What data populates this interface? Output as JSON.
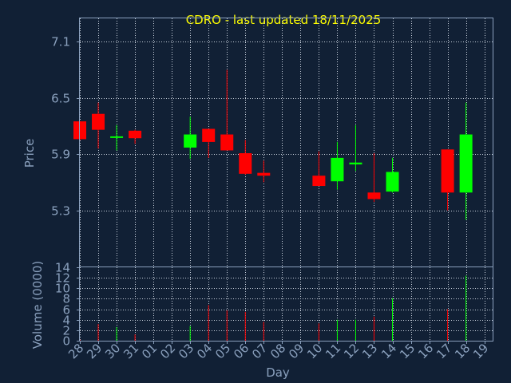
{
  "chart_data": {
    "type": "candlestick",
    "title": "CDRO - last updated 18/11/2025",
    "xlabel": "Day",
    "x_ticks": [
      "28",
      "29",
      "30",
      "31",
      "01",
      "02",
      "03",
      "04",
      "05",
      "06",
      "07",
      "08",
      "09",
      "10",
      "11",
      "12",
      "13",
      "14",
      "15",
      "16",
      "17",
      "18",
      "19"
    ],
    "price": {
      "ylabel": "Price",
      "ylim": [
        4.7,
        7.35
      ],
      "yticks": [
        5.3,
        5.9,
        6.5,
        7.1
      ],
      "ytick_labels": [
        "5.3",
        "5.9",
        "6.5",
        "7.1"
      ]
    },
    "volume": {
      "ylabel": "Volume (0000)",
      "ylim": [
        0,
        14
      ],
      "yticks": [
        0,
        2,
        4,
        6,
        8,
        10,
        12,
        14
      ],
      "ytick_labels": [
        "0",
        "2",
        "4",
        "6",
        "8",
        "10",
        "12",
        "14"
      ]
    },
    "candles": [
      {
        "day": "28",
        "open": 6.25,
        "high": 6.25,
        "low": 6.05,
        "close": 6.06,
        "volume": 0.2
      },
      {
        "day": "29",
        "open": 6.33,
        "high": 6.45,
        "low": 5.96,
        "close": 6.16,
        "volume": 3.2
      },
      {
        "day": "30",
        "open": 6.09,
        "high": 6.21,
        "low": 5.94,
        "close": 6.09,
        "volume": 2.6
      },
      {
        "day": "31",
        "open": 6.15,
        "high": 6.16,
        "low": 6.01,
        "close": 6.07,
        "volume": 1.2
      },
      {
        "day": "03",
        "open": 5.97,
        "high": 6.3,
        "low": 5.85,
        "close": 6.11,
        "volume": 2.8
      },
      {
        "day": "04",
        "open": 6.17,
        "high": 6.17,
        "low": 5.86,
        "close": 6.03,
        "volume": 6.8
      },
      {
        "day": "05",
        "open": 6.11,
        "high": 6.8,
        "low": 5.94,
        "close": 5.94,
        "volume": 5.8
      },
      {
        "day": "06",
        "open": 5.91,
        "high": 6.05,
        "low": 5.68,
        "close": 5.69,
        "volume": 5.5
      },
      {
        "day": "07",
        "open": 5.7,
        "high": 5.83,
        "low": 5.6,
        "close": 5.67,
        "volume": 3.6
      },
      {
        "day": "10",
        "open": 5.67,
        "high": 5.93,
        "low": 5.56,
        "close": 5.56,
        "volume": 3.3
      },
      {
        "day": "11",
        "open": 5.61,
        "high": 6.03,
        "low": 5.52,
        "close": 5.86,
        "volume": 4.0
      },
      {
        "day": "12",
        "open": 5.79,
        "high": 6.21,
        "low": 5.72,
        "close": 5.81,
        "volume": 4.0
      },
      {
        "day": "13",
        "open": 5.49,
        "high": 5.91,
        "low": 5.39,
        "close": 5.42,
        "volume": 4.6
      },
      {
        "day": "14",
        "open": 5.5,
        "high": 5.86,
        "low": 5.49,
        "close": 5.71,
        "volume": 8.1
      },
      {
        "day": "17",
        "open": 5.95,
        "high": 5.95,
        "low": 5.3,
        "close": 5.49,
        "volume": 6.0
      },
      {
        "day": "18",
        "open": 5.49,
        "high": 6.45,
        "low": 5.2,
        "close": 6.11,
        "volume": 12.4
      }
    ],
    "colors": {
      "background": "#112035",
      "up": "#00ff00",
      "down": "#ff0000",
      "text": "#8aa0bd",
      "title": "#ffff00",
      "grid": "#c8d0dc"
    },
    "grid": true
  }
}
